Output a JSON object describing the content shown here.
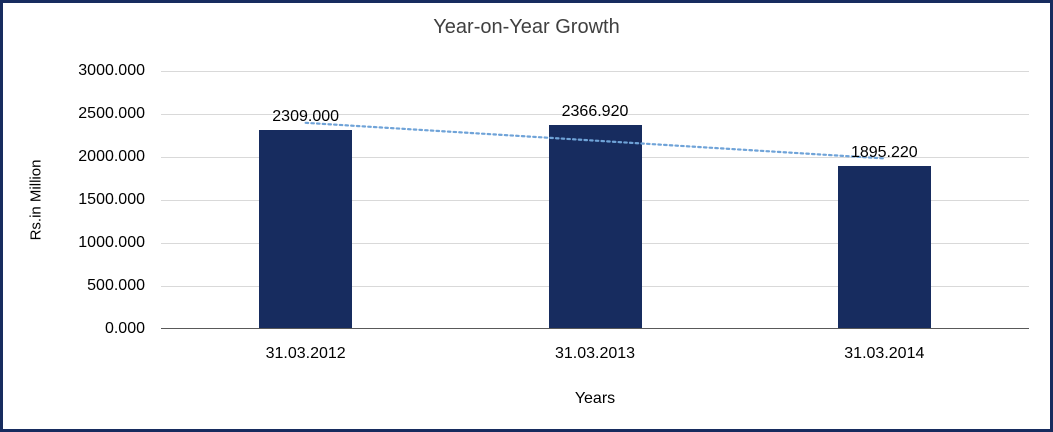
{
  "chart_data": {
    "type": "bar",
    "title": "Year-on-Year Growth",
    "xlabel": "Years",
    "ylabel": "Rs.in Million",
    "categories": [
      "31.03.2012",
      "31.03.2013",
      "31.03.2014"
    ],
    "values": [
      2309.0,
      2366.92,
      1895.22
    ],
    "data_labels": [
      "2309.000",
      "2366.920",
      "1895.220"
    ],
    "ylim": [
      0,
      3000
    ],
    "ytick_step": 500,
    "ytick_labels": [
      "0.000",
      "500.000",
      "1000.000",
      "1500.000",
      "2000.000",
      "2500.000",
      "3000.000"
    ],
    "grid": true,
    "legend": "none",
    "trendline": {
      "type": "linear",
      "style": "dotted"
    },
    "colors": {
      "bar": "#172c5f",
      "trendline": "#6fa3d8",
      "gridline": "#d9d9d9",
      "axis_line": "#595959",
      "frame_border": "#172c5f",
      "title_text": "#404040",
      "label_text": "#000000"
    }
  }
}
